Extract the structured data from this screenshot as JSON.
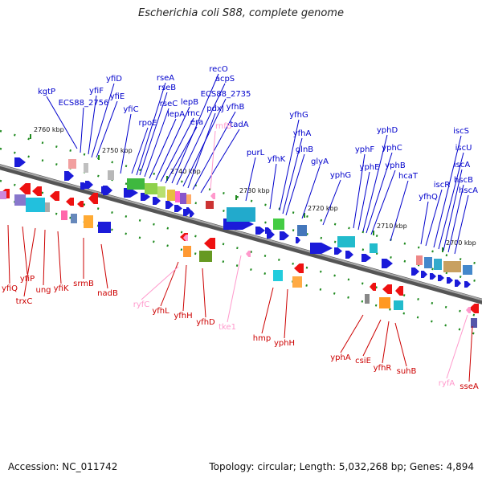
{
  "title": "Escherichia coli S88, complete genome",
  "footer": {
    "accession": "Accession: NC_011742",
    "summary": "Topology: circular; Length: 5,032,268 bp; Genes: 4,894"
  },
  "colors": {
    "forward_label": "#0000cc",
    "reverse_label": "#cc0000",
    "rna_label": "#ff99cc",
    "backbone": "#777777",
    "tick": "#1f8a1f"
  },
  "ticks": [
    {
      "label": "2760 kbp"
    },
    {
      "label": "2750 kbp"
    },
    {
      "label": "2740 kbp"
    },
    {
      "label": "2730 kbp"
    },
    {
      "label": "2720 kbp"
    },
    {
      "label": "2710 kbp"
    },
    {
      "label": "2700 kbp"
    }
  ],
  "forward_genes": [
    {
      "name": "kgtP"
    },
    {
      "name": "ECS88_2756"
    },
    {
      "name": "yfiF"
    },
    {
      "name": "yfiD"
    },
    {
      "name": "yfiE"
    },
    {
      "name": "yfiC"
    },
    {
      "name": "rpoE"
    },
    {
      "name": "rseA"
    },
    {
      "name": "rseB"
    },
    {
      "name": "rseC"
    },
    {
      "name": "lepA"
    },
    {
      "name": "lepB"
    },
    {
      "name": "rnc"
    },
    {
      "name": "era"
    },
    {
      "name": "recO"
    },
    {
      "name": "acpS"
    },
    {
      "name": "ECS88_2735"
    },
    {
      "name": "pdxJ"
    },
    {
      "name": "yfhB"
    },
    {
      "name": "tadA"
    },
    {
      "name": "purL"
    },
    {
      "name": "yfhK"
    },
    {
      "name": "yfhG"
    },
    {
      "name": "yfhA"
    },
    {
      "name": "glnB"
    },
    {
      "name": "glyA"
    },
    {
      "name": "yphG"
    },
    {
      "name": "yphF"
    },
    {
      "name": "yphE"
    },
    {
      "name": "yphD"
    },
    {
      "name": "yphC"
    },
    {
      "name": "yphB"
    },
    {
      "name": "hcaT"
    },
    {
      "name": "yfhQ"
    },
    {
      "name": "iscR"
    },
    {
      "name": "iscS"
    },
    {
      "name": "iscU"
    },
    {
      "name": "iscA"
    },
    {
      "name": "hscB"
    },
    {
      "name": "hscA"
    }
  ],
  "rna_genes": [
    {
      "name": "rnfB"
    },
    {
      "name": "ryfC"
    },
    {
      "name": "tke1"
    },
    {
      "name": "ryfA"
    }
  ],
  "reverse_genes": [
    {
      "name": "yfiQ"
    },
    {
      "name": "yfiP"
    },
    {
      "name": "trxC"
    },
    {
      "name": "ung"
    },
    {
      "name": "yfiK"
    },
    {
      "name": "srmB"
    },
    {
      "name": "nadB"
    },
    {
      "name": "yfhL"
    },
    {
      "name": "yfhH"
    },
    {
      "name": "yfhD"
    },
    {
      "name": "hmp"
    },
    {
      "name": "yphH"
    },
    {
      "name": "yphA"
    },
    {
      "name": "csiE"
    },
    {
      "name": "yfhR"
    },
    {
      "name": "suhB"
    },
    {
      "name": "sseA"
    }
  ]
}
